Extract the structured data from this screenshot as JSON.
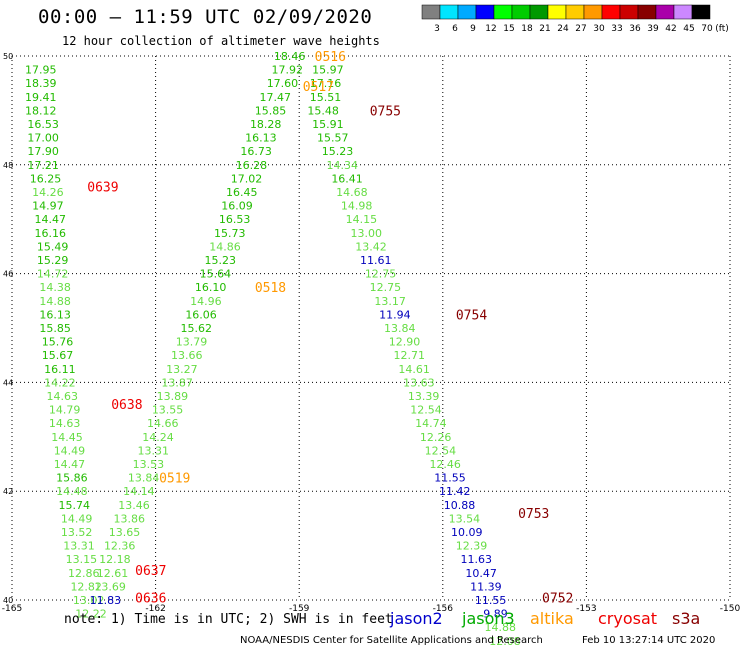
{
  "header": {
    "title": "00:00 – 11:59 UTC 02/09/2020",
    "subtitle": "12 hour collection of altimeter wave heights"
  },
  "color_scale": {
    "labels": [
      "3",
      "6",
      "9",
      "12",
      "15",
      "18",
      "21",
      "24",
      "27",
      "30",
      "33",
      "36",
      "39",
      "42",
      "45",
      "70"
    ],
    "unit": "(ft)",
    "colors": [
      "#808080",
      "#00e5ff",
      "#00aaff",
      "#0000ff",
      "#00ff00",
      "#00cc00",
      "#009900",
      "#ffff00",
      "#ffcc00",
      "#ff9900",
      "#ff0000",
      "#cc0000",
      "#880000",
      "#aa00aa",
      "#cc88ff",
      "#000000"
    ]
  },
  "footer": {
    "note": "note: 1) Time is in UTC; 2) SWH is in feet",
    "credit": "NOAA/NESDIS Center for Satellite Applications and Research",
    "timestamp": "Feb 10 13:27:14 UTC 2020",
    "missions": [
      {
        "name": "jason2",
        "color": "#0000cc"
      },
      {
        "name": "jason3",
        "color": "#00aa00"
      },
      {
        "name": "altika",
        "color": "#ff9900"
      },
      {
        "name": "cryosat",
        "color": "#ee0000"
      },
      {
        "name": "s3a",
        "color": "#880000"
      }
    ]
  },
  "chart_data": {
    "type": "scatter",
    "title": "00:00 – 11:59 UTC 02/09/2020",
    "xlabel": "",
    "ylabel": "",
    "xlim": [
      -165,
      -150
    ],
    "ylim": [
      40,
      50
    ],
    "x_ticks": [
      -165,
      -162,
      -159,
      -156,
      -153,
      -150
    ],
    "x_tick_labels": [
      "-165",
      "-162",
      "-159",
      "-156",
      "-153",
      "-150"
    ],
    "y_ticks": [
      40,
      42,
      44,
      46,
      48,
      50
    ],
    "y_tick_labels": [
      "40",
      "42",
      "44",
      "46",
      "48",
      "50"
    ],
    "grid": true,
    "level_colors": {
      "L": "#66dd44",
      "M": "#22bb00",
      "J": "#0000bb"
    },
    "tracks": [
      {
        "name": "track-1",
        "points": [
          [
            -164.4,
            49.75,
            "17.95",
            "M"
          ],
          [
            -164.4,
            49.5,
            "18.39",
            "M"
          ],
          [
            -164.4,
            49.25,
            "19.41",
            "M"
          ],
          [
            -164.4,
            49.0,
            "18.12",
            "M"
          ],
          [
            -164.35,
            48.75,
            "16.53",
            "M"
          ],
          [
            -164.35,
            48.5,
            "17.00",
            "M"
          ],
          [
            -164.35,
            48.25,
            "17.90",
            "M"
          ],
          [
            -164.35,
            48.0,
            "17.21",
            "M"
          ],
          [
            -164.3,
            47.75,
            "16.25",
            "M"
          ],
          [
            -164.25,
            47.5,
            "14.26",
            "L"
          ],
          [
            -164.25,
            47.25,
            "14.97",
            "M"
          ],
          [
            -164.2,
            47.0,
            "14.47",
            "M"
          ],
          [
            -164.2,
            46.75,
            "16.16",
            "M"
          ],
          [
            -164.15,
            46.5,
            "15.49",
            "M"
          ],
          [
            -164.15,
            46.25,
            "15.29",
            "M"
          ],
          [
            -164.15,
            46.0,
            "14.72",
            "L"
          ],
          [
            -164.1,
            45.75,
            "14.38",
            "L"
          ],
          [
            -164.1,
            45.5,
            "14.88",
            "L"
          ],
          [
            -164.1,
            45.25,
            "16.13",
            "M"
          ],
          [
            -164.1,
            45.0,
            "15.85",
            "M"
          ],
          [
            -164.05,
            44.75,
            "15.76",
            "M"
          ],
          [
            -164.05,
            44.5,
            "15.67",
            "M"
          ],
          [
            -164.0,
            44.25,
            "16.11",
            "M"
          ],
          [
            -164.0,
            44.0,
            "14.22",
            "L"
          ],
          [
            -163.95,
            43.75,
            "14.63",
            "L"
          ],
          [
            -163.9,
            43.5,
            "14.79",
            "L"
          ],
          [
            -163.9,
            43.25,
            "14.63",
            "L"
          ],
          [
            -163.85,
            43.0,
            "14.45",
            "L"
          ],
          [
            -163.8,
            42.75,
            "14.49",
            "L"
          ],
          [
            -163.8,
            42.5,
            "14.47",
            "L"
          ],
          [
            -163.75,
            42.25,
            "15.86",
            "M"
          ],
          [
            -163.75,
            42.0,
            "14.48",
            "L"
          ],
          [
            -163.7,
            41.75,
            "15.74",
            "M"
          ],
          [
            -163.65,
            41.5,
            "14.49",
            "L"
          ],
          [
            -163.65,
            41.25,
            "13.52",
            "L"
          ],
          [
            -163.6,
            41.0,
            "13.31",
            "L"
          ],
          [
            -163.55,
            40.75,
            "13.15",
            "L"
          ],
          [
            -163.5,
            40.5,
            "12.86",
            "L"
          ],
          [
            -163.45,
            40.25,
            "12.82",
            "L"
          ],
          [
            -163.4,
            40.0,
            "13.02",
            "L"
          ],
          [
            -163.35,
            39.75,
            "12.22",
            "L"
          ]
        ]
      },
      {
        "name": "track-2",
        "points": [
          [
            -159.2,
            50.0,
            "18.46",
            "M"
          ],
          [
            -159.25,
            49.75,
            "17.92",
            "M"
          ],
          [
            -159.35,
            49.5,
            "17.60",
            "M"
          ],
          [
            -159.5,
            49.25,
            "17.47",
            "M"
          ],
          [
            -159.6,
            49.0,
            "15.85",
            "M"
          ],
          [
            -159.7,
            48.75,
            "18.28",
            "M"
          ],
          [
            -159.8,
            48.5,
            "16.13",
            "M"
          ],
          [
            -159.9,
            48.25,
            "16.73",
            "M"
          ],
          [
            -160.0,
            48.0,
            "16.28",
            "M"
          ],
          [
            -160.1,
            47.75,
            "17.02",
            "M"
          ],
          [
            -160.2,
            47.5,
            "16.45",
            "M"
          ],
          [
            -160.3,
            47.25,
            "16.09",
            "M"
          ],
          [
            -160.35,
            47.0,
            "16.53",
            "M"
          ],
          [
            -160.45,
            46.75,
            "15.73",
            "M"
          ],
          [
            -160.55,
            46.5,
            "14.86",
            "L"
          ],
          [
            -160.65,
            46.25,
            "15.23",
            "M"
          ],
          [
            -160.75,
            46.0,
            "15.64",
            "M"
          ],
          [
            -160.85,
            45.75,
            "16.10",
            "M"
          ],
          [
            -160.95,
            45.5,
            "14.96",
            "L"
          ],
          [
            -161.05,
            45.25,
            "16.06",
            "M"
          ],
          [
            -161.15,
            45.0,
            "15.62",
            "M"
          ],
          [
            -161.25,
            44.75,
            "13.79",
            "L"
          ],
          [
            -161.35,
            44.5,
            "13.66",
            "L"
          ],
          [
            -161.45,
            44.25,
            "13.27",
            "L"
          ],
          [
            -161.55,
            44.0,
            "13.87",
            "L"
          ],
          [
            -161.65,
            43.75,
            "13.89",
            "L"
          ],
          [
            -161.75,
            43.5,
            "13.55",
            "L"
          ],
          [
            -161.85,
            43.25,
            "14.66",
            "L"
          ],
          [
            -161.95,
            43.0,
            "14.24",
            "L"
          ],
          [
            -162.05,
            42.75,
            "13.31",
            "L"
          ],
          [
            -162.15,
            42.5,
            "13.53",
            "L"
          ],
          [
            -162.25,
            42.25,
            "13.84",
            "L"
          ],
          [
            -162.35,
            42.0,
            "14.14",
            "L"
          ],
          [
            -162.45,
            41.75,
            "13.46",
            "L"
          ],
          [
            -162.55,
            41.5,
            "13.86",
            "L"
          ],
          [
            -162.65,
            41.25,
            "13.65",
            "L"
          ],
          [
            -162.75,
            41.0,
            "12.36",
            "L"
          ],
          [
            -162.85,
            40.75,
            "12.18",
            "L"
          ],
          [
            -162.9,
            40.5,
            "12.61",
            "L"
          ],
          [
            -162.95,
            40.25,
            "13.69",
            "L"
          ],
          [
            -163.05,
            40.0,
            "11.83",
            "J"
          ]
        ]
      },
      {
        "name": "track-3",
        "points": [
          [
            -158.4,
            49.75,
            "15.97",
            "M"
          ],
          [
            -158.45,
            49.5,
            "17.16",
            "M"
          ],
          [
            -158.45,
            49.25,
            "15.51",
            "M"
          ],
          [
            -158.5,
            49.0,
            "15.48",
            "M"
          ],
          [
            -158.4,
            48.75,
            "15.91",
            "M"
          ],
          [
            -158.3,
            48.5,
            "15.57",
            "M"
          ],
          [
            -158.2,
            48.25,
            "15.23",
            "M"
          ],
          [
            -158.1,
            48.0,
            "14.34",
            "L"
          ],
          [
            -158.0,
            47.75,
            "16.41",
            "M"
          ],
          [
            -157.9,
            47.5,
            "14.68",
            "L"
          ],
          [
            -157.8,
            47.25,
            "14.98",
            "L"
          ],
          [
            -157.7,
            47.0,
            "14.15",
            "L"
          ],
          [
            -157.6,
            46.75,
            "13.00",
            "L"
          ],
          [
            -157.5,
            46.5,
            "13.42",
            "L"
          ],
          [
            -157.4,
            46.25,
            "11.61",
            "J"
          ],
          [
            -157.3,
            46.0,
            "12.75",
            "L"
          ],
          [
            -157.2,
            45.75,
            "12.75",
            "L"
          ],
          [
            -157.1,
            45.5,
            "13.17",
            "L"
          ],
          [
            -157.0,
            45.25,
            "11.94",
            "J"
          ],
          [
            -156.9,
            45.0,
            "13.84",
            "L"
          ],
          [
            -156.8,
            44.75,
            "12.90",
            "L"
          ],
          [
            -156.7,
            44.5,
            "12.71",
            "L"
          ],
          [
            -156.6,
            44.25,
            "14.61",
            "L"
          ],
          [
            -156.5,
            44.0,
            "13.63",
            "L"
          ],
          [
            -156.4,
            43.75,
            "13.39",
            "L"
          ],
          [
            -156.35,
            43.5,
            "12.54",
            "L"
          ],
          [
            -156.25,
            43.25,
            "14.74",
            "L"
          ],
          [
            -156.15,
            43.0,
            "12.26",
            "L"
          ],
          [
            -156.05,
            42.75,
            "12.54",
            "L"
          ],
          [
            -155.95,
            42.5,
            "12.46",
            "L"
          ],
          [
            -155.85,
            42.25,
            "11.55",
            "J"
          ],
          [
            -155.75,
            42.0,
            "11.42",
            "J"
          ],
          [
            -155.65,
            41.75,
            "10.88",
            "J"
          ],
          [
            -155.55,
            41.5,
            "13.54",
            "L"
          ],
          [
            -155.5,
            41.25,
            "10.09",
            "J"
          ],
          [
            -155.4,
            41.0,
            "12.39",
            "L"
          ],
          [
            -155.3,
            40.75,
            "11.63",
            "J"
          ],
          [
            -155.2,
            40.5,
            "10.47",
            "J"
          ],
          [
            -155.1,
            40.25,
            "11.39",
            "J"
          ],
          [
            -155.0,
            40.0,
            "11.55",
            "J"
          ],
          [
            -154.9,
            39.75,
            "9.89",
            "J"
          ],
          [
            -154.8,
            39.5,
            "14.88",
            "L"
          ],
          [
            -154.7,
            39.25,
            "12.08",
            "L"
          ]
        ]
      }
    ],
    "time_labels": [
      {
        "text": "0516",
        "x": -158.35,
        "y": 50.0,
        "color": "#ff9900"
      },
      {
        "text": "0517",
        "x": -158.6,
        "y": 49.45,
        "color": "#ff9900"
      },
      {
        "text": "0755",
        "x": -157.2,
        "y": 49.0,
        "color": "#880000"
      },
      {
        "text": "0639",
        "x": -163.1,
        "y": 47.6,
        "color": "#ee0000"
      },
      {
        "text": "0518",
        "x": -159.6,
        "y": 45.75,
        "color": "#ff9900"
      },
      {
        "text": "0754",
        "x": -155.4,
        "y": 45.25,
        "color": "#880000"
      },
      {
        "text": "0638",
        "x": -162.6,
        "y": 43.6,
        "color": "#ee0000"
      },
      {
        "text": "0519",
        "x": -161.6,
        "y": 42.25,
        "color": "#ff9900"
      },
      {
        "text": "0753",
        "x": -154.1,
        "y": 41.6,
        "color": "#880000"
      },
      {
        "text": "0637",
        "x": -162.1,
        "y": 40.55,
        "color": "#ee0000"
      },
      {
        "text": "0636",
        "x": -162.1,
        "y": 40.05,
        "color": "#ee0000"
      },
      {
        "text": "0752",
        "x": -153.6,
        "y": 40.05,
        "color": "#880000"
      }
    ]
  }
}
